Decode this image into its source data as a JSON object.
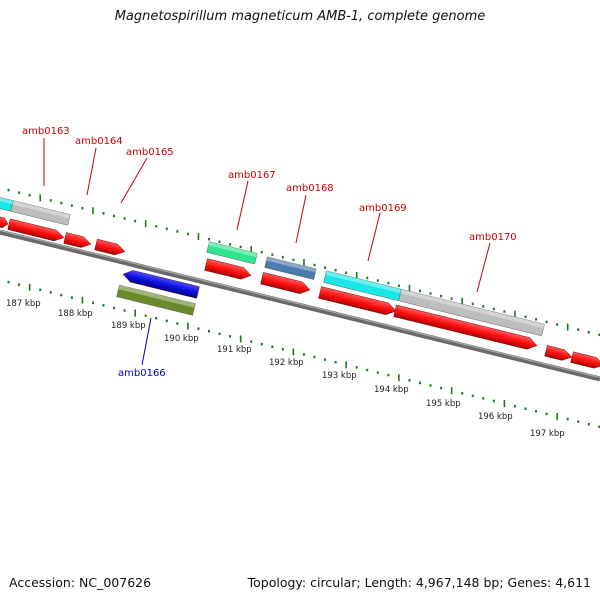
{
  "header": {
    "title": "Magnetospirillum magneticum AMB-1, complete genome"
  },
  "footer": {
    "accession": "Accession: NC_007626",
    "summary": "Topology: circular; Length: 4,967,148 bp; Genes: 4,611"
  },
  "colors": {
    "forward_cds": "#ff1a1a",
    "reverse_cds": "#1a1aee",
    "label_forward": "#cc0000",
    "label_reverse": "#0000cc",
    "tick": "#1a7a1a",
    "backbone": "#7a7a7a",
    "cyan_feature": "#19e6e6",
    "grey_feature": "#bdbdbd",
    "green_feature": "#2ee68f",
    "steelblue_feature": "#4a7aae",
    "olive_feature": "#6a8a2a"
  },
  "gene_labels": [
    {
      "id": "amb0163",
      "strand": "forward"
    },
    {
      "id": "amb0164",
      "strand": "forward"
    },
    {
      "id": "amb0165",
      "strand": "forward"
    },
    {
      "id": "amb0166",
      "strand": "reverse"
    },
    {
      "id": "amb0167",
      "strand": "forward"
    },
    {
      "id": "amb0168",
      "strand": "forward"
    },
    {
      "id": "amb0169",
      "strand": "forward"
    },
    {
      "id": "amb0170",
      "strand": "forward"
    }
  ],
  "kbp_labels": [
    "187 kbp",
    "188 kbp",
    "189 kbp",
    "190 kbp",
    "191 kbp",
    "192 kbp",
    "193 kbp",
    "194 kbp",
    "195 kbp",
    "196 kbp",
    "197 kbp"
  ]
}
